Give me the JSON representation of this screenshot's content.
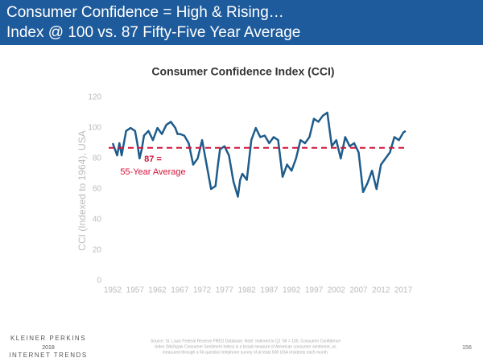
{
  "header": {
    "lines": [
      "Consumer Confidence = High & Rising…",
      "Index @ 100 vs. 87 Fifty-Five Year Average"
    ]
  },
  "chart_data": {
    "type": "line",
    "title": "Consumer Confidence Index (CCI)",
    "y_label": "CCI (Indexed to 1964), USA",
    "x": [
      1952,
      1952.5,
      1953,
      1953.5,
      1954,
      1954.5,
      1955,
      1956,
      1957,
      1957.5,
      1958,
      1958.5,
      1959,
      1960,
      1961,
      1962,
      1963,
      1964,
      1965,
      1966,
      1966.5,
      1967,
      1968,
      1969,
      1970,
      1971,
      1972,
      1973,
      1974,
      1975,
      1975.5,
      1976,
      1977,
      1978,
      1979,
      1980,
      1980.5,
      1981,
      1982,
      1983,
      1984,
      1985,
      1986,
      1987,
      1988,
      1989,
      1990,
      1991,
      1992,
      1993,
      1994,
      1995,
      1996,
      1997,
      1998,
      1999,
      2000,
      2001,
      2002,
      2003,
      2004,
      2005,
      2006,
      2007,
      2008,
      2009,
      2010,
      2011,
      2012,
      2013,
      2014,
      2015,
      2016,
      2017,
      2017.5
    ],
    "series": [
      {
        "name": "CCI",
        "color": "#1f5c8b",
        "values": [
          90,
          86,
          82,
          90,
          82,
          90,
          98,
          100,
          98,
          90,
          80,
          86,
          95,
          98,
          92,
          100,
          96,
          102,
          104,
          100,
          96,
          96,
          95,
          90,
          76,
          80,
          92,
          76,
          60,
          62,
          75,
          86,
          88,
          82,
          65,
          55,
          66,
          70,
          66,
          92,
          100,
          94,
          95,
          90,
          94,
          92,
          68,
          76,
          72,
          80,
          92,
          90,
          94,
          106,
          104,
          108,
          110,
          88,
          92,
          80,
          94,
          88,
          90,
          84,
          58,
          64,
          72,
          60,
          76,
          80,
          84,
          94,
          92,
          97,
          98
        ]
      }
    ],
    "xlim": [
      1952,
      2018
    ],
    "ylim": [
      0,
      120
    ],
    "xticks": [
      1952,
      1957,
      1962,
      1967,
      1972,
      1977,
      1982,
      1987,
      1992,
      1997,
      2002,
      2007,
      2012,
      2017
    ],
    "yticks": [
      0,
      20,
      40,
      60,
      80,
      100,
      120
    ],
    "reference_line": {
      "value": 87,
      "color": "#d2143a"
    },
    "annotation": [
      "87 =",
      "55-Year Average"
    ]
  },
  "footer": {
    "brand": [
      "KLEINER PERKINS",
      "2018",
      "INTERNET TRENDS"
    ],
    "source": [
      "Source: St. Louis Federal Reserve FRED Database. Note: Indexed to Q1 '66 = 100. Consumer Confidence",
      "Index (Michigan Consumer Sentiment Index) is a broad measure of American consumer sentiment, as",
      "measured through a 50-question telephone survey of at least 500 USA residents each month."
    ],
    "page": "156"
  }
}
